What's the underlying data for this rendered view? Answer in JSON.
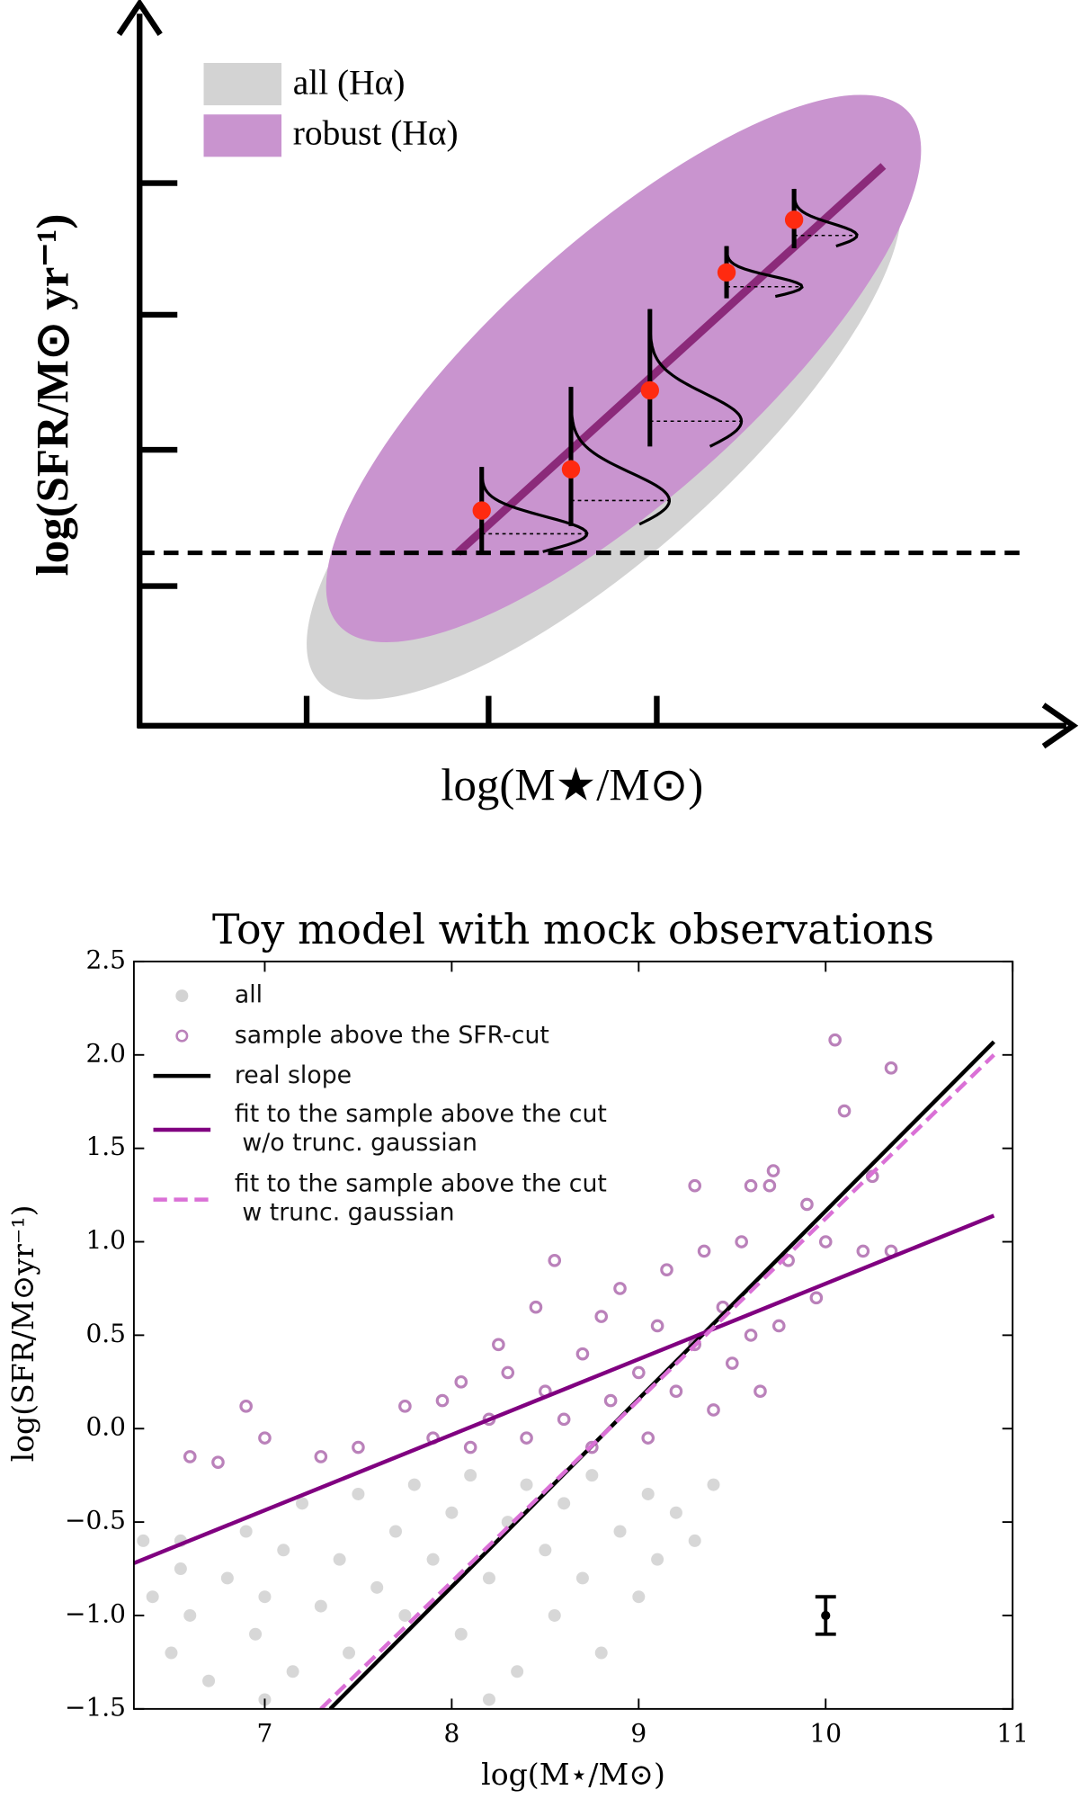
{
  "chart_data": [
    {
      "type": "schematic",
      "xlabel": "log(M★/M⊙)",
      "ylabel": "log(SFR/M⊙ yr⁻¹)",
      "legend": [
        {
          "name": "all (Hα)",
          "color": "#d3d3d3"
        },
        {
          "name": "robust (Hα)",
          "color": "#c994cf"
        }
      ]
    },
    {
      "type": "scatter",
      "title": "Toy model with mock observations",
      "xlabel": "log(M⋆/M⊙)",
      "ylabel": "log(SFR/M⊙yr⁻¹)",
      "xlim": [
        6.3,
        11
      ],
      "ylim": [
        -1.5,
        2.5
      ],
      "xticks": [
        7,
        8,
        9,
        10,
        11
      ],
      "yticks": [
        {
          "value": -1.5,
          "label": "−1.5"
        },
        {
          "value": -1.0,
          "label": "−1.0"
        },
        {
          "value": -0.5,
          "label": "−0.5"
        },
        {
          "value": 0,
          "label": "0.0"
        },
        0.5,
        {
          "value": 1.0,
          "label": "1.0"
        },
        1.5,
        {
          "value": 2.0,
          "label": "2.0"
        },
        2.5
      ],
      "series": [
        {
          "name": "all",
          "color": "#d3d3d3",
          "marker": "filled",
          "x": [
            6.35,
            6.4,
            6.5,
            6.55,
            6.6,
            6.7,
            6.8,
            6.9,
            6.95,
            7.0,
            7.1,
            7.15,
            7.2,
            7.3,
            7.4,
            7.45,
            7.5,
            7.6,
            7.7,
            7.75,
            7.8,
            7.9,
            8.0,
            8.05,
            8.1,
            8.2,
            8.3,
            8.35,
            8.4,
            8.5,
            8.55,
            8.6,
            8.7,
            8.75,
            8.8,
            8.9,
            9.0,
            9.05,
            9.1,
            9.2,
            9.3,
            9.4,
            8.2,
            7.0,
            6.55
          ],
          "values": [
            -0.6,
            -0.9,
            -1.2,
            -0.75,
            -1.0,
            -1.35,
            -0.8,
            -0.55,
            -1.1,
            -0.9,
            -0.65,
            -1.3,
            -0.4,
            -0.95,
            -0.7,
            -1.2,
            -0.35,
            -0.85,
            -0.55,
            -1.0,
            -0.3,
            -0.7,
            -0.45,
            -1.1,
            -0.25,
            -0.8,
            -0.5,
            -1.3,
            -0.3,
            -0.65,
            -1.0,
            -0.4,
            -0.8,
            -0.25,
            -1.2,
            -0.55,
            -0.9,
            -0.35,
            -0.7,
            -0.45,
            -0.6,
            -0.3,
            -1.45,
            -1.45,
            -0.6
          ]
        },
        {
          "name": "sample above the SFR-cut",
          "color": "#9c4b9c",
          "marker": "open",
          "x": [
            6.6,
            6.75,
            6.9,
            7.0,
            7.3,
            7.5,
            7.75,
            7.9,
            8.05,
            8.1,
            8.2,
            8.3,
            8.4,
            8.45,
            8.5,
            8.55,
            8.6,
            8.7,
            8.75,
            8.8,
            8.85,
            8.9,
            9.0,
            9.05,
            9.1,
            9.15,
            9.2,
            9.3,
            9.35,
            9.4,
            9.45,
            9.5,
            9.55,
            9.6,
            9.65,
            9.7,
            9.72,
            9.75,
            9.8,
            9.9,
            9.95,
            10.0,
            10.05,
            10.1,
            10.2,
            10.25,
            10.35,
            10.35,
            9.6,
            9.3,
            8.25,
            7.95
          ],
          "values": [
            -0.15,
            -0.18,
            0.12,
            -0.05,
            -0.15,
            -0.1,
            0.12,
            -0.05,
            0.25,
            -0.1,
            0.05,
            0.3,
            -0.05,
            0.65,
            0.2,
            0.9,
            0.05,
            0.4,
            -0.1,
            0.6,
            0.15,
            0.75,
            0.3,
            -0.05,
            0.55,
            0.85,
            0.2,
            0.45,
            0.95,
            0.1,
            0.65,
            0.35,
            1.0,
            0.5,
            0.2,
            1.3,
            1.38,
            0.55,
            0.9,
            1.2,
            0.7,
            1.0,
            2.08,
            1.7,
            0.95,
            1.35,
            1.93,
            0.95,
            1.3,
            1.3,
            0.45,
            0.15
          ]
        },
        {
          "name": "real slope",
          "color": "#000000",
          "type": "line",
          "linestyle": "solid",
          "x": [
            7.35,
            10.9
          ],
          "values": [
            -1.5,
            2.07
          ]
        },
        {
          "name": "fit to the sample above the cut\n w/o trunc. gaussian",
          "color": "#800080",
          "type": "line",
          "linestyle": "solid",
          "x": [
            6.3,
            10.9
          ],
          "values": [
            -0.72,
            1.14
          ]
        },
        {
          "name": "fit to the sample above the cut\n w trunc. gaussian",
          "color": "#da70d6",
          "type": "line",
          "linestyle": "dashed",
          "x": [
            7.3,
            10.9
          ],
          "values": [
            -1.5,
            2.0
          ]
        }
      ],
      "errorbar": {
        "x": 10,
        "y": -1.0,
        "yerr": 0.1
      }
    }
  ]
}
